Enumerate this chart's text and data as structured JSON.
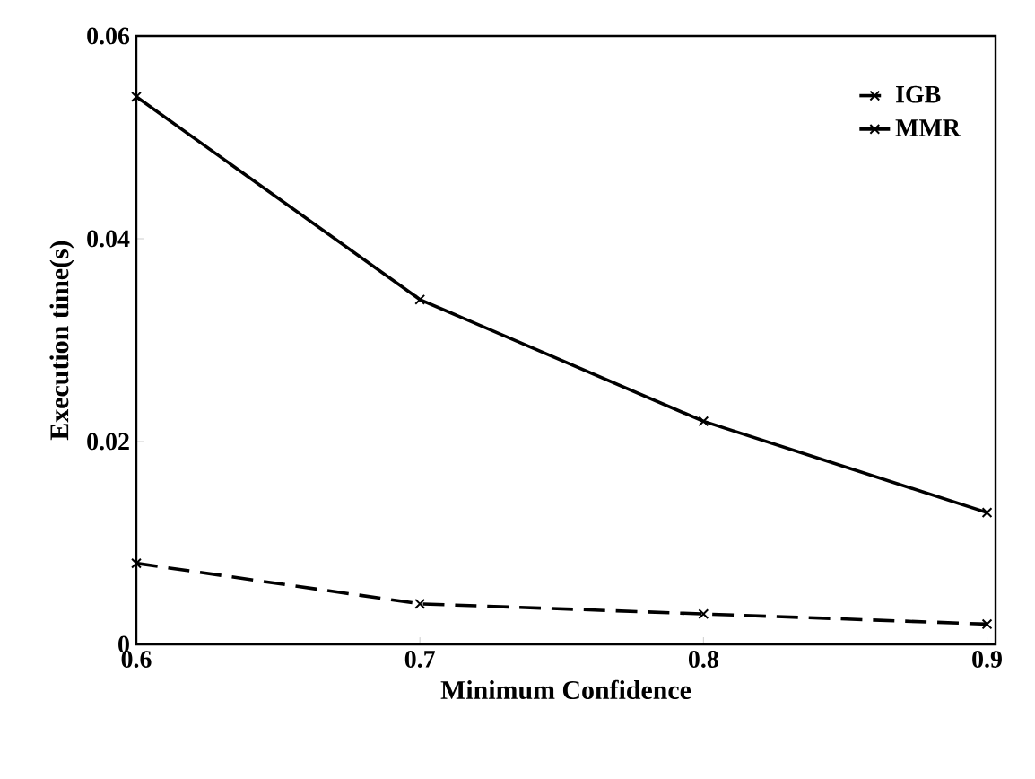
{
  "chart_data": {
    "type": "line",
    "xlabel": "Minimum Confidence",
    "ylabel": "Execution time(s)",
    "x": [
      0.6,
      0.7,
      0.8,
      0.9
    ],
    "series": [
      {
        "name": "IGB",
        "color": "#000000",
        "values": [
          0.008,
          0.004,
          0.003,
          0.002
        ],
        "marker": "cross",
        "line_style": "dashed"
      },
      {
        "name": "MMR",
        "color": "#000000",
        "values": [
          0.054,
          0.034,
          0.022,
          0.013
        ],
        "marker": "cross",
        "line_style": "solid"
      }
    ],
    "xlim": [
      0.6,
      0.903
    ],
    "xticks": [
      0.6,
      0.7,
      0.8,
      0.9
    ],
    "ylim": [
      0,
      0.06
    ],
    "yticks": [
      0,
      0.02,
      0.04,
      0.06
    ],
    "grid": false,
    "legend": "top right"
  }
}
